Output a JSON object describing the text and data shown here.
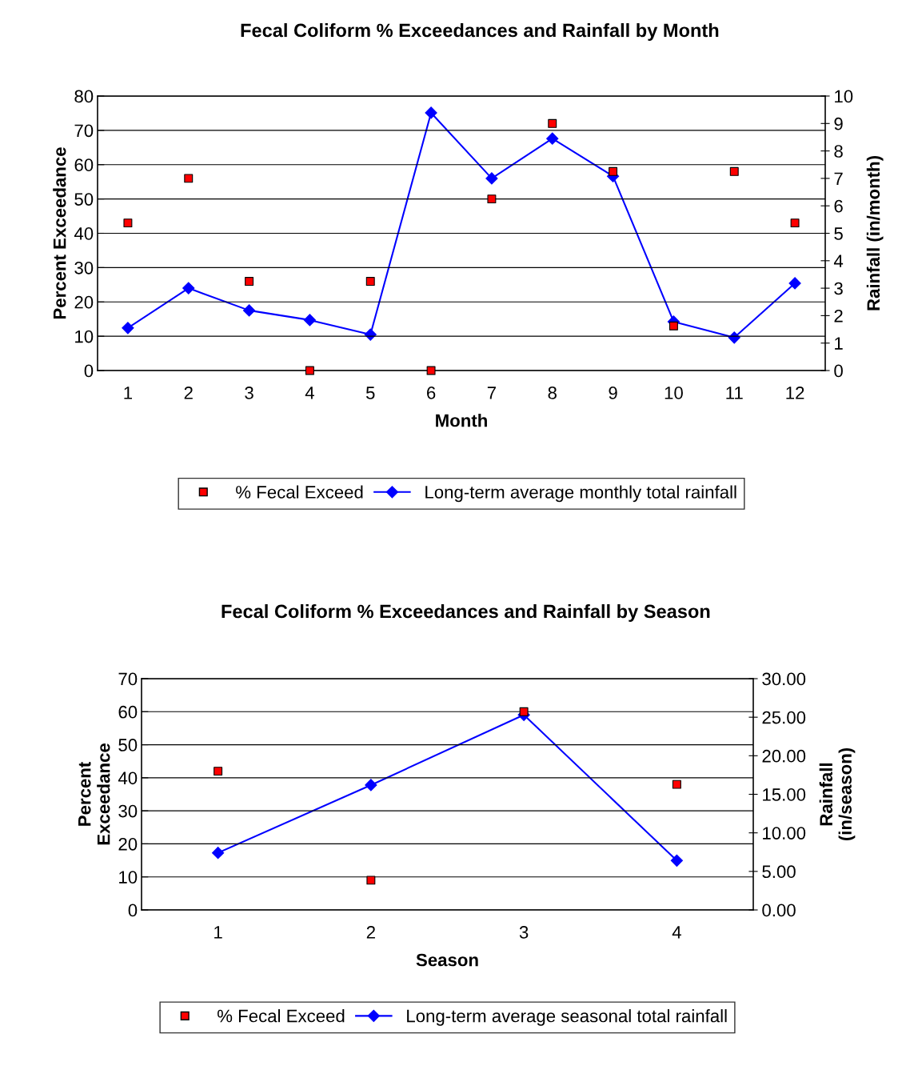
{
  "chart_data": [
    {
      "type": "scatter",
      "title": "Fecal Coliform % Exceedances and Rainfall by Month",
      "xlabel": "Month",
      "ylabel": "Percent Exceedance",
      "y2label": "Rainfall (in/month)",
      "categories": [
        "1",
        "2",
        "3",
        "4",
        "5",
        "6",
        "7",
        "8",
        "9",
        "10",
        "11",
        "12"
      ],
      "series": [
        {
          "name": "% Fecal Exceed",
          "marker": "square",
          "color": "#ff0000",
          "values": [
            43,
            56,
            26,
            0,
            26,
            0,
            50,
            72,
            58,
            13,
            58,
            43
          ]
        },
        {
          "name": "Long-term average monthly total rainfall",
          "type": "line",
          "marker": "diamond",
          "line_style": "solid",
          "axis": "y2",
          "color": "#0000ff",
          "values": [
            1.55,
            3.0,
            2.19,
            1.84,
            1.31,
            9.39,
            7.0,
            8.45,
            7.08,
            1.78,
            1.2,
            3.18
          ]
        }
      ],
      "ylim": [
        0,
        80
      ],
      "yticks": [
        0,
        10,
        20,
        30,
        40,
        50,
        60,
        70,
        80
      ],
      "y2lim": [
        0,
        10
      ],
      "y2ticks": [
        0,
        1,
        2,
        3,
        4,
        5,
        6,
        7,
        8,
        9,
        10
      ],
      "grid": "y",
      "legend": "bottom"
    },
    {
      "type": "scatter",
      "title": "Fecal Coliform % Exceedances and Rainfall by Season",
      "xlabel": "Season",
      "ylabel": "Percent\nExceedance",
      "y2label": "Rainfall\n(in/season)",
      "categories": [
        "1",
        "2",
        "3",
        "4"
      ],
      "series": [
        {
          "name": "% Fecal Exceed",
          "marker": "square",
          "color": "#ff0000",
          "values": [
            42,
            9,
            60,
            38
          ]
        },
        {
          "name": "Long-term average seasonal total rainfall",
          "type": "line",
          "marker": "diamond",
          "line_style": "solid",
          "axis": "y2",
          "color": "#0000ff",
          "values": [
            7.4,
            16.2,
            25.3,
            6.4
          ]
        }
      ],
      "ylim": [
        0,
        70
      ],
      "yticks": [
        0,
        10,
        20,
        30,
        40,
        50,
        60,
        70
      ],
      "y2lim": [
        0,
        30
      ],
      "y2ticks": [
        {
          "value": 0,
          "label": "0.00"
        },
        {
          "value": 5,
          "label": "5.00"
        },
        {
          "value": 10,
          "label": "10.00"
        },
        {
          "value": 15,
          "label": "15.00"
        },
        {
          "value": 20,
          "label": "20.00"
        },
        {
          "value": 25,
          "label": "25.00"
        },
        {
          "value": 30,
          "label": "30.00"
        }
      ],
      "grid": "y",
      "legend": "bottom"
    }
  ]
}
